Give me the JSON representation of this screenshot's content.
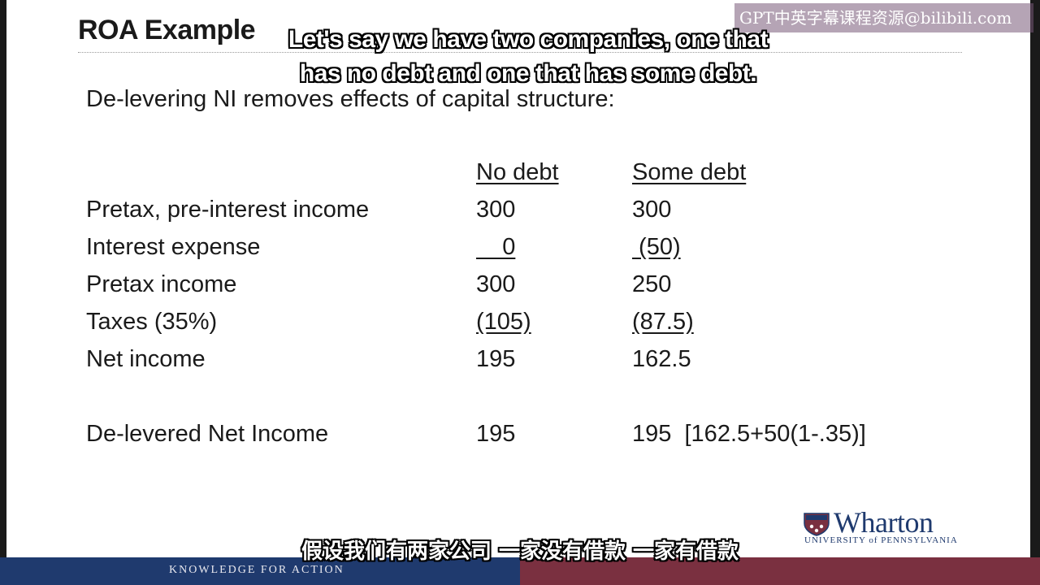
{
  "slide": {
    "title": "ROA Example",
    "intro": "De-levering NI removes effects of capital structure:",
    "columns": [
      "No debt",
      "Some debt"
    ],
    "rows": [
      {
        "label": "Pretax, pre-interest income",
        "no_debt": "300",
        "some_debt": "300"
      },
      {
        "label": "Interest expense",
        "no_debt": "    0",
        "some_debt": " (50)"
      },
      {
        "label": "Pretax income",
        "no_debt": "300",
        "some_debt": "250"
      },
      {
        "label": "Taxes (35%)",
        "no_debt": "(105)",
        "some_debt": "(87.5)"
      },
      {
        "label": "Net income",
        "no_debt": "195",
        "some_debt": "162.5"
      },
      {
        "label": "De-levered Net Income",
        "no_debt": "195",
        "some_debt": "195  [162.5+50(1-.35)]"
      }
    ]
  },
  "logo": {
    "word": "Wharton",
    "subtitle": "UNIVERSITY of PENNSYLVANIA"
  },
  "footer": {
    "tagline": "KNOWLEDGE FOR ACTION"
  },
  "overlay": {
    "watermark": "GPT中英字幕课程资源@bilibili.com",
    "subtitle_en_line1": "Let's say we have two companies, one that",
    "subtitle_en_line2": "has no debt and one that has some debt.",
    "subtitle_zh": "假设我们有两家公司 一家没有借款 一家有借款"
  },
  "colors": {
    "navy": "#1f3a6e",
    "maroon": "#7a3040"
  }
}
